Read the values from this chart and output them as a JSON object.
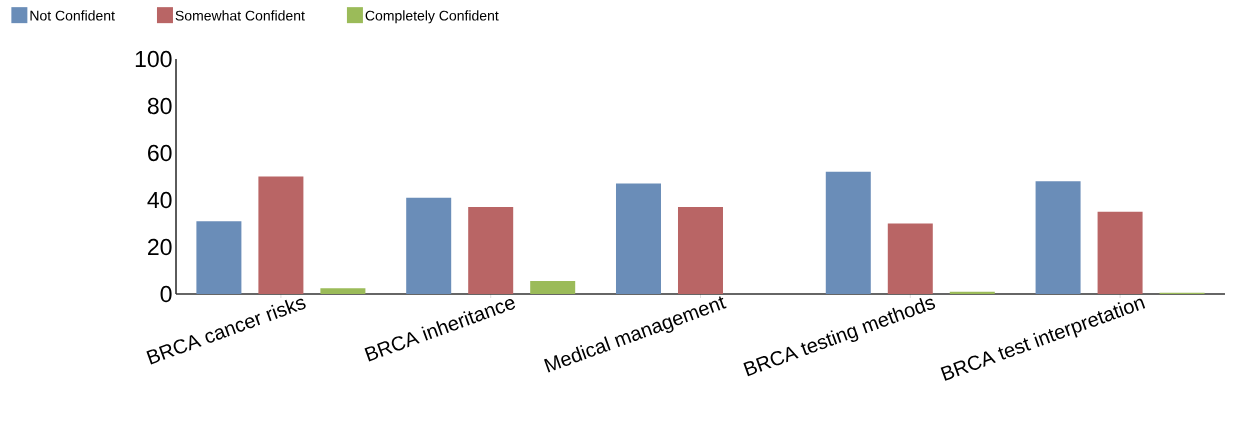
{
  "chart_data": {
    "type": "bar",
    "categories": [
      "BRCA cancer risks",
      "BRCA inheritance",
      "Medical management",
      "BRCA testing methods",
      "BRCA test interpretation"
    ],
    "series": [
      {
        "name": "Not Confident",
        "color": "#6a8db8",
        "values": [
          31,
          41,
          47,
          52,
          48
        ]
      },
      {
        "name": "Somewhat Confident",
        "color": "#b96565",
        "values": [
          50,
          37,
          37,
          30,
          35
        ]
      },
      {
        "name": "Completely Confident",
        "color": "#9bbb59",
        "values": [
          2.5,
          5.5,
          0,
          1,
          0.5
        ]
      }
    ],
    "ylim": [
      0,
      100
    ],
    "yticks": [
      0,
      20,
      40,
      60,
      80,
      100
    ],
    "grid": false,
    "legend": "top left"
  }
}
